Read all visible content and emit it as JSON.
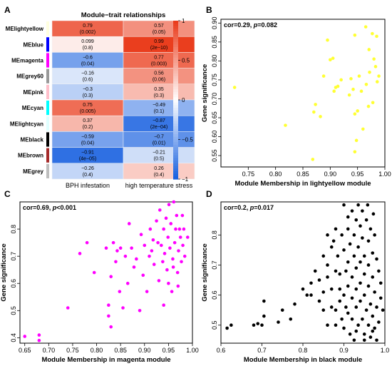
{
  "chart_data": [
    {
      "panel": "A",
      "type": "heatmap",
      "title": "Module−trait relationships",
      "rows": [
        "MElightyellow",
        "MEblue",
        "MEmagenta",
        "MEgrey60",
        "MEpink",
        "MEcyan",
        "MElightcyan",
        "MEblack",
        "MEbrown",
        "MEgrey"
      ],
      "row_colors": [
        "#ffffe0",
        "#0000ff",
        "#ff00ff",
        "#999999",
        "#ffc0cb",
        "#00ffff",
        "#e0ffff",
        "#000000",
        "#a52a2a",
        "#bebebe"
      ],
      "columns": [
        "BPH infestation",
        "high temperature stress"
      ],
      "values": [
        [
          0.79,
          0.57
        ],
        [
          0.099,
          0.99
        ],
        [
          -0.6,
          0.77
        ],
        [
          -0.16,
          0.56
        ],
        [
          -0.3,
          0.35
        ],
        [
          0.75,
          -0.49
        ],
        [
          0.37,
          -0.87
        ],
        [
          -0.59,
          -0.7
        ],
        [
          -0.91,
          -0.21
        ],
        [
          -0.26,
          0.26
        ]
      ],
      "cell_labels": [
        [
          "0.79",
          "(0.002)",
          "0.57",
          "(0.05)"
        ],
        [
          "0.099",
          "(0.8)",
          "0.99",
          "(2e−10)"
        ],
        [
          "−0.6",
          "(0.04)",
          "0.77",
          "(0.003)"
        ],
        [
          "−0.16",
          "(0.6)",
          "0.56",
          "(0.06)"
        ],
        [
          "−0.3",
          "(0.3)",
          "0.35",
          "(0.3)"
        ],
        [
          "0.75",
          "(0.005)",
          "−0.49",
          "(0.1)"
        ],
        [
          "0.37",
          "(0.2)",
          "−0.87",
          "(2e−04)"
        ],
        [
          "−0.59",
          "(0.04)",
          "−0.7",
          "(0.01)"
        ],
        [
          "−0.91",
          "(4e−05)",
          "−0.21",
          "(0.5)"
        ],
        [
          "−0.26",
          "(0.4)",
          "0.26",
          "(0.4)"
        ]
      ],
      "colorbar_ticks": [
        "1",
        "0.5",
        "0",
        "−0.5",
        "−1"
      ],
      "colorbar_values": [
        1,
        0.5,
        0,
        -0.5,
        -1
      ],
      "scale_colors": {
        "neg": "#1a62e0",
        "mid": "#ffffff",
        "pos": "#ea3c1c"
      }
    },
    {
      "panel": "B",
      "type": "scatter",
      "annotation_cor": "cor=0.29, ",
      "annotation_p": "p",
      "annotation_rest": "=0.082",
      "xlabel": "Module Membership in lightyellow module",
      "ylabel": "Gene significance",
      "xlim": [
        0.7,
        1.0
      ],
      "ylim": [
        0.52,
        0.91
      ],
      "xticks": [
        0.75,
        0.8,
        0.85,
        0.9,
        0.95,
        1.0
      ],
      "xtick_labels": [
        "0.75",
        "0.80",
        "0.85",
        "0.90",
        "0.95",
        "1.00"
      ],
      "yticks": [
        0.55,
        0.6,
        0.65,
        0.7,
        0.75,
        0.8,
        0.85,
        0.9
      ],
      "ytick_labels": [
        "0.55",
        "0.60",
        "0.65",
        "0.70",
        "0.75",
        "0.80",
        "0.85",
        "0.90"
      ],
      "color": "#ffff33",
      "points": [
        [
          0.725,
          0.73
        ],
        [
          0.818,
          0.63
        ],
        [
          0.868,
          0.54
        ],
        [
          0.87,
          0.665
        ],
        [
          0.873,
          0.685
        ],
        [
          0.882,
          0.653
        ],
        [
          0.888,
          0.76
        ],
        [
          0.895,
          0.855
        ],
        [
          0.9,
          0.803
        ],
        [
          0.905,
          0.807
        ],
        [
          0.907,
          0.72
        ],
        [
          0.91,
          0.73
        ],
        [
          0.914,
          0.733
        ],
        [
          0.92,
          0.75
        ],
        [
          0.935,
          0.71
        ],
        [
          0.938,
          0.753
        ],
        [
          0.942,
          0.725
        ],
        [
          0.945,
          0.868
        ],
        [
          0.945,
          0.66
        ],
        [
          0.945,
          0.56
        ],
        [
          0.948,
          0.59
        ],
        [
          0.95,
          0.668
        ],
        [
          0.953,
          0.76
        ],
        [
          0.957,
          0.72
        ],
        [
          0.96,
          0.62
        ],
        [
          0.965,
          0.89
        ],
        [
          0.966,
          0.738
        ],
        [
          0.97,
          0.68
        ],
        [
          0.971,
          0.83
        ],
        [
          0.972,
          0.77
        ],
        [
          0.977,
          0.872
        ],
        [
          0.978,
          0.69
        ],
        [
          0.98,
          0.805
        ],
        [
          0.983,
          0.785
        ],
        [
          0.985,
          0.865
        ],
        [
          0.986,
          0.745
        ],
        [
          0.989,
          0.76
        ]
      ]
    },
    {
      "panel": "C",
      "type": "scatter",
      "annotation_cor": "cor=0.69, ",
      "annotation_p": "p",
      "annotation_rest": "<0.001",
      "xlabel": "Module Membership in magenta module",
      "ylabel": "Gene significance",
      "xlim": [
        0.64,
        1.0
      ],
      "ylim": [
        0.38,
        0.9
      ],
      "xticks": [
        0.65,
        0.7,
        0.75,
        0.8,
        0.85,
        0.9,
        0.95,
        1.0
      ],
      "xtick_labels": [
        "0.65",
        "0.70",
        "0.75",
        "0.80",
        "0.85",
        "0.90",
        "0.95",
        "1.00"
      ],
      "yticks": [
        0.4,
        0.5,
        0.6,
        0.7,
        0.8
      ],
      "ytick_labels": [
        "0.4",
        "0.5",
        "0.6",
        "0.7",
        "0.8"
      ],
      "color": "#ff00ff",
      "points": [
        [
          0.65,
          0.405
        ],
        [
          0.68,
          0.39
        ],
        [
          0.68,
          0.41
        ],
        [
          0.74,
          0.51
        ],
        [
          0.765,
          0.71
        ],
        [
          0.78,
          0.75
        ],
        [
          0.795,
          0.64
        ],
        [
          0.82,
          0.73
        ],
        [
          0.825,
          0.48
        ],
        [
          0.825,
          0.52
        ],
        [
          0.83,
          0.44
        ],
        [
          0.83,
          0.625
        ],
        [
          0.835,
          0.75
        ],
        [
          0.84,
          0.68
        ],
        [
          0.843,
          0.72
        ],
        [
          0.848,
          0.57
        ],
        [
          0.85,
          0.73
        ],
        [
          0.855,
          0.51
        ],
        [
          0.86,
          0.7
        ],
        [
          0.865,
          0.6
        ],
        [
          0.868,
          0.82
        ],
        [
          0.873,
          0.73
        ],
        [
          0.878,
          0.66
        ],
        [
          0.883,
          0.69
        ],
        [
          0.89,
          0.5
        ],
        [
          0.893,
          0.78
        ],
        [
          0.897,
          0.63
        ],
        [
          0.9,
          0.74
        ],
        [
          0.905,
          0.57
        ],
        [
          0.91,
          0.7
        ],
        [
          0.912,
          0.8
        ],
        [
          0.915,
          0.72
        ],
        [
          0.918,
          0.76
        ],
        [
          0.92,
          0.67
        ],
        [
          0.925,
          0.83
        ],
        [
          0.928,
          0.75
        ],
        [
          0.93,
          0.61
        ],
        [
          0.932,
          0.87
        ],
        [
          0.935,
          0.74
        ],
        [
          0.938,
          0.68
        ],
        [
          0.94,
          0.8
        ],
        [
          0.942,
          0.71
        ],
        [
          0.945,
          0.84
        ],
        [
          0.947,
          0.65
        ],
        [
          0.949,
          0.77
        ],
        [
          0.951,
          0.89
        ],
        [
          0.953,
          0.73
        ],
        [
          0.955,
          0.82
        ],
        [
          0.957,
          0.57
        ],
        [
          0.959,
          0.69
        ],
        [
          0.961,
          0.9
        ],
        [
          0.963,
          0.75
        ],
        [
          0.965,
          0.8
        ],
        [
          0.967,
          0.85
        ],
        [
          0.969,
          0.64
        ],
        [
          0.971,
          0.72
        ],
        [
          0.973,
          0.8
        ],
        [
          0.975,
          0.77
        ],
        [
          0.977,
          0.68
        ],
        [
          0.979,
          0.85
        ],
        [
          0.98,
          0.74
        ],
        [
          0.982,
          0.8
        ],
        [
          0.984,
          0.7
        ],
        [
          0.99,
          0.77
        ],
        [
          0.96,
          0.66
        ],
        [
          0.95,
          0.6
        ],
        [
          0.94,
          0.52
        ],
        [
          0.97,
          0.59
        ]
      ]
    },
    {
      "panel": "D",
      "type": "scatter",
      "annotation_cor": "cor=0.2, ",
      "annotation_p": "p",
      "annotation_rest": "=0.017",
      "xlabel": "Module Membership in black module",
      "ylabel": "Gene significance",
      "xlim": [
        0.6,
        1.0
      ],
      "ylim": [
        0.44,
        0.91
      ],
      "xticks": [
        0.6,
        0.7,
        0.8,
        0.9,
        1.0
      ],
      "xtick_labels": [
        "0.6",
        "0.7",
        "0.8",
        "0.9",
        "1.0"
      ],
      "yticks": [
        0.5,
        0.6,
        0.7,
        0.8
      ],
      "ytick_labels": [
        "0.5",
        "0.6",
        "0.7",
        "0.8"
      ],
      "color": "#000000",
      "points": [
        [
          0.615,
          0.49
        ],
        [
          0.625,
          0.5
        ],
        [
          0.68,
          0.5
        ],
        [
          0.69,
          0.505
        ],
        [
          0.7,
          0.5
        ],
        [
          0.705,
          0.53
        ],
        [
          0.705,
          0.58
        ],
        [
          0.74,
          0.51
        ],
        [
          0.75,
          0.55
        ],
        [
          0.77,
          0.52
        ],
        [
          0.78,
          0.57
        ],
        [
          0.8,
          0.62
        ],
        [
          0.81,
          0.6
        ],
        [
          0.82,
          0.64
        ],
        [
          0.82,
          0.6
        ],
        [
          0.83,
          0.68
        ],
        [
          0.84,
          0.58
        ],
        [
          0.84,
          0.65
        ],
        [
          0.85,
          0.73
        ],
        [
          0.85,
          0.61
        ],
        [
          0.85,
          0.55
        ],
        [
          0.86,
          0.66
        ],
        [
          0.86,
          0.7
        ],
        [
          0.86,
          0.5
        ],
        [
          0.87,
          0.76
        ],
        [
          0.87,
          0.56
        ],
        [
          0.87,
          0.62
        ],
        [
          0.875,
          0.78
        ],
        [
          0.88,
          0.68
        ],
        [
          0.88,
          0.5
        ],
        [
          0.88,
          0.55
        ],
        [
          0.885,
          0.73
        ],
        [
          0.89,
          0.62
        ],
        [
          0.89,
          0.58
        ],
        [
          0.89,
          0.67
        ],
        [
          0.895,
          0.8
        ],
        [
          0.895,
          0.52
        ],
        [
          0.9,
          0.9
        ],
        [
          0.9,
          0.75
        ],
        [
          0.9,
          0.6
        ],
        [
          0.9,
          0.49
        ],
        [
          0.905,
          0.68
        ],
        [
          0.905,
          0.56
        ],
        [
          0.91,
          0.82
        ],
        [
          0.91,
          0.71
        ],
        [
          0.91,
          0.63
        ],
        [
          0.91,
          0.54
        ],
        [
          0.915,
          0.77
        ],
        [
          0.915,
          0.47
        ],
        [
          0.92,
          0.88
        ],
        [
          0.92,
          0.66
        ],
        [
          0.92,
          0.59
        ],
        [
          0.92,
          0.52
        ],
        [
          0.925,
          0.8
        ],
        [
          0.925,
          0.73
        ],
        [
          0.925,
          0.45
        ],
        [
          0.93,
          0.85
        ],
        [
          0.93,
          0.69
        ],
        [
          0.93,
          0.62
        ],
        [
          0.93,
          0.56
        ],
        [
          0.935,
          0.9
        ],
        [
          0.935,
          0.76
        ],
        [
          0.935,
          0.5
        ],
        [
          0.94,
          0.83
        ],
        [
          0.94,
          0.71
        ],
        [
          0.94,
          0.64
        ],
        [
          0.94,
          0.58
        ],
        [
          0.945,
          0.88
        ],
        [
          0.945,
          0.79
        ],
        [
          0.945,
          0.52
        ],
        [
          0.95,
          0.73
        ],
        [
          0.95,
          0.67
        ],
        [
          0.95,
          0.6
        ],
        [
          0.95,
          0.47
        ],
        [
          0.955,
          0.85
        ],
        [
          0.955,
          0.55
        ],
        [
          0.96,
          0.78
        ],
        [
          0.96,
          0.7
        ],
        [
          0.96,
          0.63
        ],
        [
          0.96,
          0.5
        ],
        [
          0.965,
          0.82
        ],
        [
          0.965,
          0.57
        ],
        [
          0.965,
          0.46
        ],
        [
          0.97,
          0.74
        ],
        [
          0.97,
          0.66
        ],
        [
          0.97,
          0.53
        ],
        [
          0.975,
          0.8
        ],
        [
          0.975,
          0.61
        ],
        [
          0.975,
          0.49
        ],
        [
          0.98,
          0.72
        ],
        [
          0.98,
          0.56
        ],
        [
          0.985,
          0.68
        ],
        [
          0.985,
          0.51
        ],
        [
          0.99,
          0.64
        ],
        [
          0.99,
          0.59
        ],
        [
          0.995,
          0.55
        ],
        [
          0.972,
          0.87
        ],
        [
          0.958,
          0.9
        ],
        [
          0.91,
          0.86
        ],
        [
          0.88,
          0.82
        ],
        [
          0.86,
          0.8
        ],
        [
          0.93,
          0.48
        ],
        [
          0.95,
          0.45
        ],
        [
          0.97,
          0.48
        ],
        [
          0.98,
          0.45
        ]
      ]
    }
  ]
}
